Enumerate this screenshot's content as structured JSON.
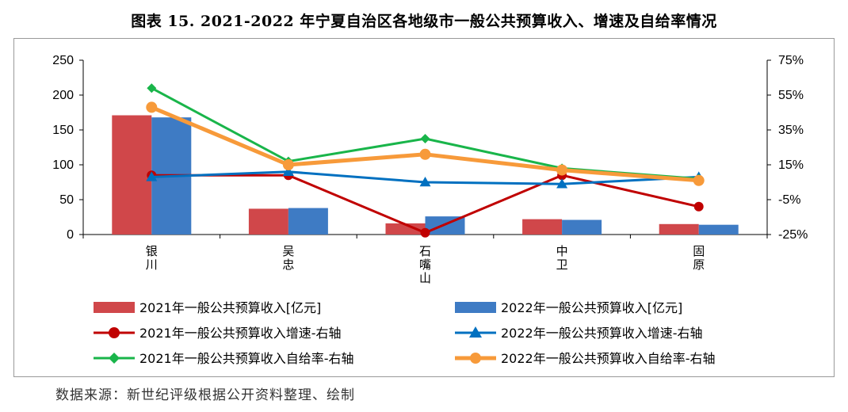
{
  "title": "图表 15. 2021-2022 年宁夏自治区各地级市一般公共预算收入、增速及自给率情况",
  "source": "数据来源：新世纪评级根据公开资料整理、绘制",
  "chart_data": {
    "type": "bar",
    "categories": [
      "银川",
      "吴忠",
      "石嘴山",
      "中卫",
      "固原"
    ],
    "left_axis": {
      "ylim": [
        0,
        250
      ],
      "ticks": [
        "250",
        "200",
        "150",
        "100",
        "50",
        "0"
      ]
    },
    "right_axis": {
      "ylim": [
        -25,
        75
      ],
      "ticks": [
        "75%",
        "55%",
        "35%",
        "15%",
        "-5%",
        "-25%"
      ]
    },
    "bars": [
      {
        "name": "2021年一般公共预算收入[亿元]",
        "color": "#d0474a",
        "values": [
          171,
          37,
          16,
          22,
          15
        ]
      },
      {
        "name": "2022年一般公共预算收入[亿元]",
        "color": "#3e7bc4",
        "values": [
          168,
          38,
          26,
          21,
          14
        ]
      }
    ],
    "lines": [
      {
        "name": "2021年一般公共预算收入增速-右轴",
        "color": "#c00000",
        "marker": "circle",
        "values": [
          9.0,
          9.0,
          -24.0,
          9.0,
          -9.0
        ]
      },
      {
        "name": "2022年一般公共预算收入增速-右轴",
        "color": "#0070c0",
        "marker": "triangle",
        "values": [
          8.0,
          11.0,
          5.0,
          4.0,
          8.0
        ]
      },
      {
        "name": "2021年一般公共预算收入自给率-右轴",
        "color": "#19b54a",
        "marker": "diamond",
        "values": [
          59.0,
          17.0,
          30.0,
          13.0,
          7.0
        ]
      },
      {
        "name": "2022年一般公共预算收入自给率-右轴",
        "color": "#f79a3a",
        "marker": "circle",
        "values": [
          48.0,
          15.0,
          21.0,
          12.0,
          6.0
        ]
      }
    ]
  }
}
